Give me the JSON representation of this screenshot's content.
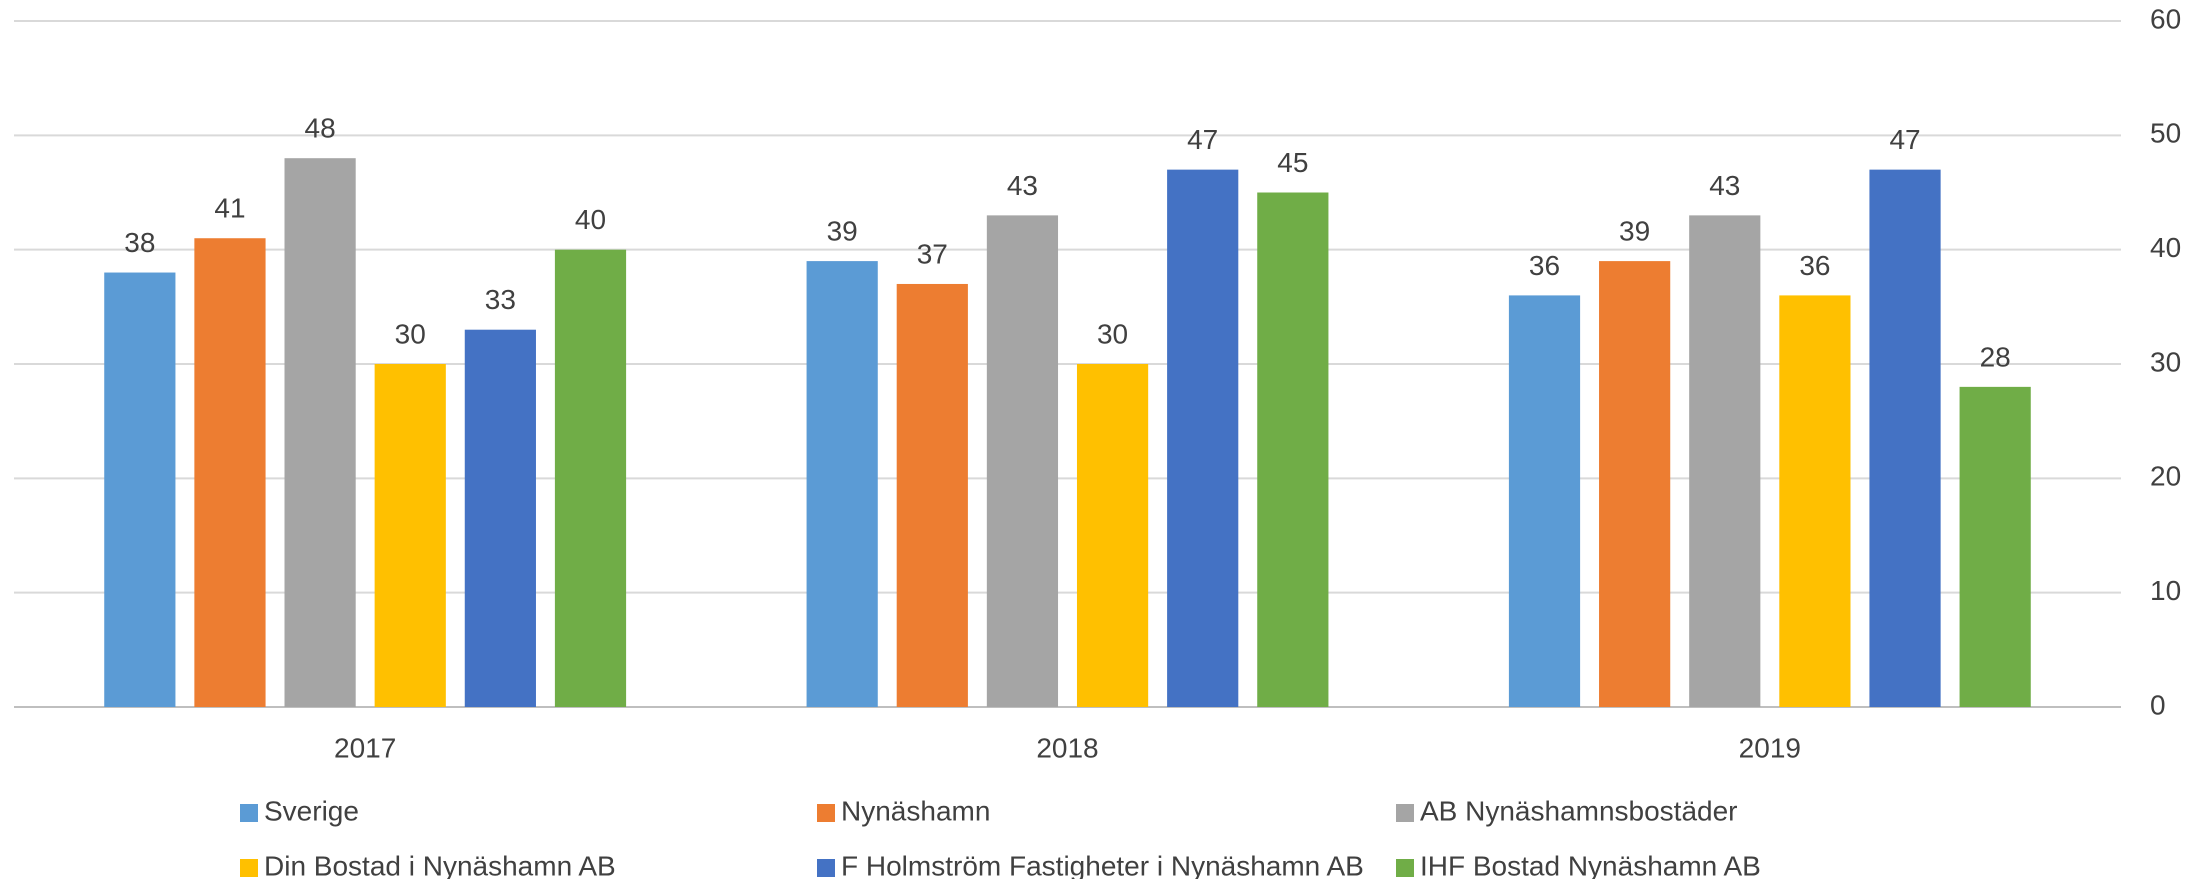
{
  "chart_data": {
    "type": "bar",
    "categories": [
      "2017",
      "2018",
      "2019"
    ],
    "series": [
      {
        "name": "Sverige",
        "color": "#5b9bd5",
        "values": [
          38,
          39,
          36
        ]
      },
      {
        "name": "Nynäshamn",
        "color": "#ed7d31",
        "values": [
          41,
          37,
          39
        ]
      },
      {
        "name": "AB Nynäshamnsbostäder",
        "color": "#a5a5a5",
        "values": [
          48,
          43,
          43
        ]
      },
      {
        "name": "Din Bostad i Nynäshamn AB",
        "color": "#ffc000",
        "values": [
          30,
          30,
          36
        ]
      },
      {
        "name": "F Holmström Fastigheter i Nynäshamn AB",
        "color": "#4472c4",
        "values": [
          33,
          47,
          47
        ]
      },
      {
        "name": "IHF Bostad Nynäshamn AB",
        "color": "#70ad47",
        "values": [
          40,
          45,
          28
        ]
      }
    ],
    "ylim": [
      0,
      60
    ],
    "yticks": [
      0,
      10,
      20,
      30,
      40,
      50,
      60
    ],
    "grid": true,
    "legend": "bottom"
  }
}
